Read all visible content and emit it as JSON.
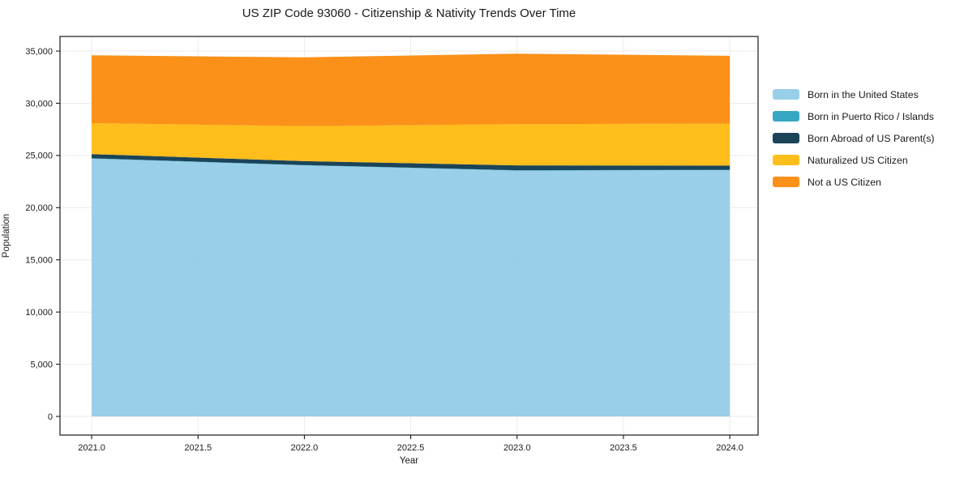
{
  "chart": {
    "title": "US ZIP Code 93060 - Citizenship & Nativity Trends Over Time",
    "xlabel": "Year",
    "ylabel": "Population"
  },
  "chart_data": {
    "type": "area",
    "stacked": true,
    "title": "US ZIP Code 93060 - Citizenship & Nativity Trends Over Time",
    "xlabel": "Year",
    "ylabel": "Population",
    "grid": true,
    "legend_position": "right-outside",
    "x": [
      2021,
      2022,
      2023,
      2024
    ],
    "series": [
      {
        "name": "Born in the United States",
        "color": "#8ECAE6",
        "values": [
          24700,
          24050,
          23550,
          23600
        ]
      },
      {
        "name": "Born in Puerto Rico / Islands",
        "color": "#219EBC",
        "values": [
          30,
          30,
          30,
          30
        ]
      },
      {
        "name": "Born Abroad of US Parent(s)",
        "color": "#023047",
        "values": [
          400,
          380,
          470,
          400
        ]
      },
      {
        "name": "Naturalized US Citizen",
        "color": "#FFB703",
        "values": [
          2970,
          3340,
          3950,
          4020
        ]
      },
      {
        "name": "Not a US Citizen",
        "color": "#FB8500",
        "values": [
          6500,
          6600,
          6750,
          6500
        ]
      }
    ],
    "totals": [
      34600,
      34400,
      34750,
      34550
    ],
    "xlim": [
      2020.851,
      2024.133
    ],
    "ylim": [
      -1785,
      36400
    ],
    "x_ticks": [
      2021.0,
      2021.5,
      2022.0,
      2022.5,
      2023.0,
      2023.5,
      2024.0
    ],
    "x_tick_labels": [
      "2021.0",
      "2021.5",
      "2022.0",
      "2022.5",
      "2023.0",
      "2023.5",
      "2024.0"
    ],
    "y_ticks": [
      0,
      5000,
      10000,
      15000,
      20000,
      25000,
      30000,
      35000
    ],
    "y_tick_labels": [
      "0",
      "5,000",
      "10,000",
      "15,000",
      "20,000",
      "25,000",
      "30,000",
      "35,000"
    ],
    "colors": {
      "grid": "#ebebeb",
      "spine": "#1a1a1a",
      "background": "#ffffff",
      "area_opacity": 0.9
    }
  }
}
